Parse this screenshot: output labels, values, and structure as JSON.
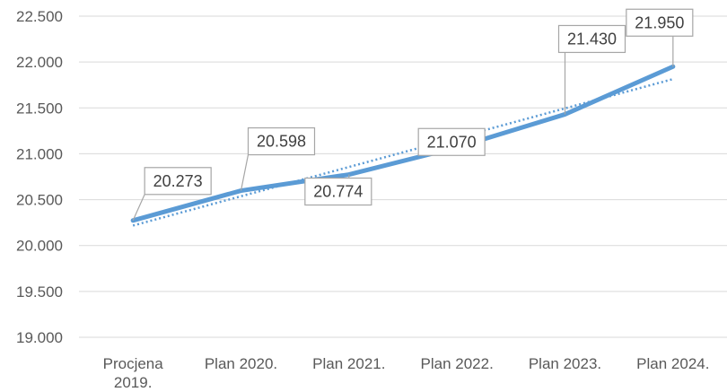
{
  "chart_data": {
    "type": "line",
    "categories": [
      [
        "Procjena",
        "2019."
      ],
      [
        "Plan 2020."
      ],
      [
        "Plan 2021."
      ],
      [
        "Plan 2022."
      ],
      [
        "Plan 2023."
      ],
      [
        "Plan 2024."
      ]
    ],
    "series": [
      {
        "values": [
          20273,
          20598,
          20774,
          21070,
          21430,
          21950
        ],
        "data_labels": [
          "20.273",
          "20.598",
          "20.774",
          "21.070",
          "21.430",
          "21.950"
        ],
        "color": "#5b9bd5"
      }
    ],
    "trendline": {
      "type": "linear",
      "style": "dotted",
      "color": "#5b9bd5"
    },
    "yticks": [
      "19.000",
      "19.500",
      "20.000",
      "20.500",
      "21.000",
      "21.500",
      "22.000",
      "22.500"
    ],
    "ylim": [
      19000,
      22500
    ],
    "grid": true,
    "legend": "none",
    "gridColor": "#d9d9d9",
    "tickColor": "#595959"
  }
}
